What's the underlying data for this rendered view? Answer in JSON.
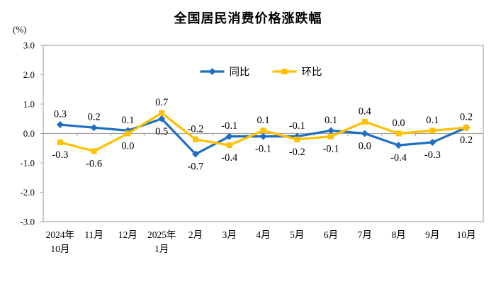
{
  "chart_data": {
    "type": "line",
    "title": "全国居民消费价格涨跌幅",
    "unit_label": "(%)",
    "categories": [
      [
        "2024年",
        "10月"
      ],
      [
        "11月"
      ],
      [
        "12月"
      ],
      [
        "2025年",
        "1月"
      ],
      [
        "2月"
      ],
      [
        "3月"
      ],
      [
        "4月"
      ],
      [
        "5月"
      ],
      [
        "6月"
      ],
      [
        "7月"
      ],
      [
        "8月"
      ],
      [
        "9月"
      ],
      [
        "10月"
      ]
    ],
    "series": [
      {
        "name": "同比",
        "marker": "diamond",
        "color": "#1E6FC0",
        "values": [
          0.3,
          0.2,
          0.1,
          0.5,
          -0.7,
          -0.1,
          -0.1,
          -0.1,
          0.1,
          0.0,
          -0.4,
          -0.3,
          0.2
        ]
      },
      {
        "name": "环比",
        "marker": "square",
        "color": "#FFC000",
        "values": [
          -0.3,
          -0.6,
          0.0,
          0.7,
          -0.2,
          -0.4,
          0.1,
          -0.2,
          -0.1,
          0.4,
          0.0,
          0.1,
          0.2
        ]
      }
    ],
    "ylim": [
      -3.0,
      3.0
    ],
    "yticks": [
      "3.0",
      "2.0",
      "1.0",
      "0.0",
      "-1.0",
      "-2.0",
      "-3.0"
    ],
    "grid": "zero-line-only",
    "legend_position": "top-center",
    "colors": {
      "plot_border": "#ADADAD",
      "zero_line": "#A6A6A6",
      "tick": "#A6A6A6",
      "text": "#000000"
    }
  }
}
